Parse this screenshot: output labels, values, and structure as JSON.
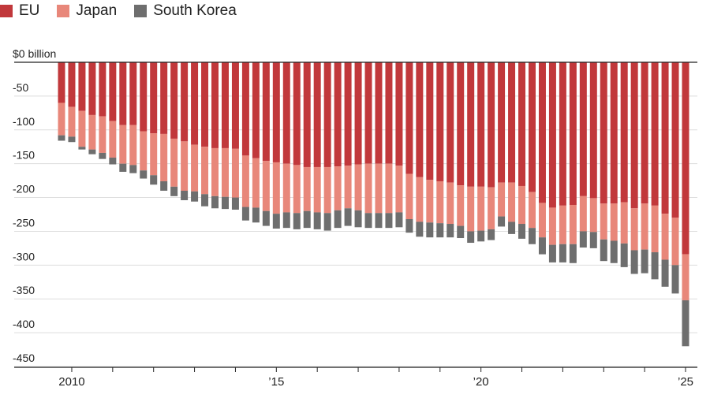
{
  "chart_data": {
    "type": "bar",
    "stacked": true,
    "orientation": "vertical",
    "title": "",
    "xlabel": "",
    "ylabel": "",
    "ylim": [
      -450,
      0
    ],
    "y_ticks": [
      0,
      -50,
      -100,
      -150,
      -200,
      -250,
      -300,
      -350,
      -400,
      -450
    ],
    "y_tick_labels": [
      "$0 billion",
      "-50",
      "-100",
      "-150",
      "-200",
      "-250",
      "-300",
      "-350",
      "-400",
      "-450"
    ],
    "x_year_ticks": [
      2010,
      2011,
      2012,
      2013,
      2014,
      2015,
      2016,
      2017,
      2018,
      2019,
      2020,
      2021,
      2022,
      2023,
      2024,
      2025
    ],
    "x_tick_labels": [
      {
        "year": 2010,
        "label": "2010"
      },
      {
        "year": 2015,
        "label": "’15"
      },
      {
        "year": 2020,
        "label": "’20"
      },
      {
        "year": 2025,
        "label": "’25"
      }
    ],
    "grid": true,
    "legend": "top-left",
    "colors": {
      "EU": "#c1383b",
      "Japan": "#e8877a",
      "South Korea": "#6e6e6e"
    },
    "x": [
      "2009-10",
      "2010-01",
      "2010-04",
      "2010-07",
      "2010-10",
      "2011-01",
      "2011-04",
      "2011-07",
      "2011-10",
      "2012-01",
      "2012-04",
      "2012-07",
      "2012-10",
      "2013-01",
      "2013-04",
      "2013-07",
      "2013-10",
      "2014-01",
      "2014-04",
      "2014-07",
      "2014-10",
      "2015-01",
      "2015-04",
      "2015-07",
      "2015-10",
      "2016-01",
      "2016-04",
      "2016-07",
      "2016-10",
      "2017-01",
      "2017-04",
      "2017-07",
      "2017-10",
      "2018-01",
      "2018-04",
      "2018-07",
      "2018-10",
      "2019-01",
      "2019-04",
      "2019-07",
      "2019-10",
      "2020-01",
      "2020-04",
      "2020-07",
      "2020-10",
      "2021-01",
      "2021-04",
      "2021-07",
      "2021-10",
      "2022-01",
      "2022-04",
      "2022-07",
      "2022-10",
      "2023-01",
      "2023-04",
      "2023-07",
      "2023-10",
      "2024-01",
      "2024-04",
      "2024-07",
      "2024-10",
      "2025-01"
    ],
    "series": [
      {
        "name": "EU",
        "values": [
          -60,
          -66,
          -72,
          -78,
          -80,
          -87,
          -93,
          -93,
          -102,
          -105,
          -106,
          -113,
          -117,
          -122,
          -125,
          -127,
          -127,
          -128,
          -138,
          -142,
          -146,
          -148,
          -150,
          -152,
          -155,
          -155,
          -155,
          -154,
          -153,
          -151,
          -150,
          -150,
          -150,
          -153,
          -165,
          -170,
          -174,
          -176,
          -178,
          -182,
          -184,
          -184,
          -185,
          -178,
          -178,
          -183,
          -192,
          -208,
          -215,
          -212,
          -211,
          -198,
          -201,
          -209,
          -209,
          -207,
          -216,
          -209,
          -212,
          -224,
          -230,
          -284
        ]
      },
      {
        "name": "Japan",
        "values": [
          -48,
          -44,
          -53,
          -51,
          -54,
          -54,
          -57,
          -59,
          -58,
          -62,
          -70,
          -71,
          -73,
          -69,
          -70,
          -71,
          -72,
          -72,
          -76,
          -73,
          -74,
          -76,
          -72,
          -71,
          -65,
          -67,
          -68,
          -65,
          -63,
          -68,
          -73,
          -73,
          -73,
          -69,
          -67,
          -66,
          -63,
          -62,
          -61,
          -60,
          -66,
          -65,
          -62,
          -50,
          -58,
          -56,
          -53,
          -51,
          -55,
          -57,
          -58,
          -52,
          -50,
          -53,
          -55,
          -61,
          -62,
          -68,
          -69,
          -68,
          -70,
          -68
        ]
      },
      {
        "name": "South Korea",
        "values": [
          -8,
          -8,
          -4,
          -7,
          -9,
          -10,
          -12,
          -12,
          -12,
          -14,
          -14,
          -14,
          -14,
          -15,
          -18,
          -18,
          -18,
          -18,
          -20,
          -22,
          -22,
          -22,
          -23,
          -24,
          -25,
          -25,
          -26,
          -26,
          -26,
          -25,
          -22,
          -22,
          -22,
          -22,
          -20,
          -22,
          -22,
          -21,
          -20,
          -18,
          -17,
          -16,
          -16,
          -15,
          -18,
          -22,
          -24,
          -25,
          -26,
          -27,
          -28,
          -24,
          -24,
          -32,
          -33,
          -35,
          -35,
          -35,
          -40,
          -40,
          -42,
          -68
        ]
      }
    ]
  }
}
